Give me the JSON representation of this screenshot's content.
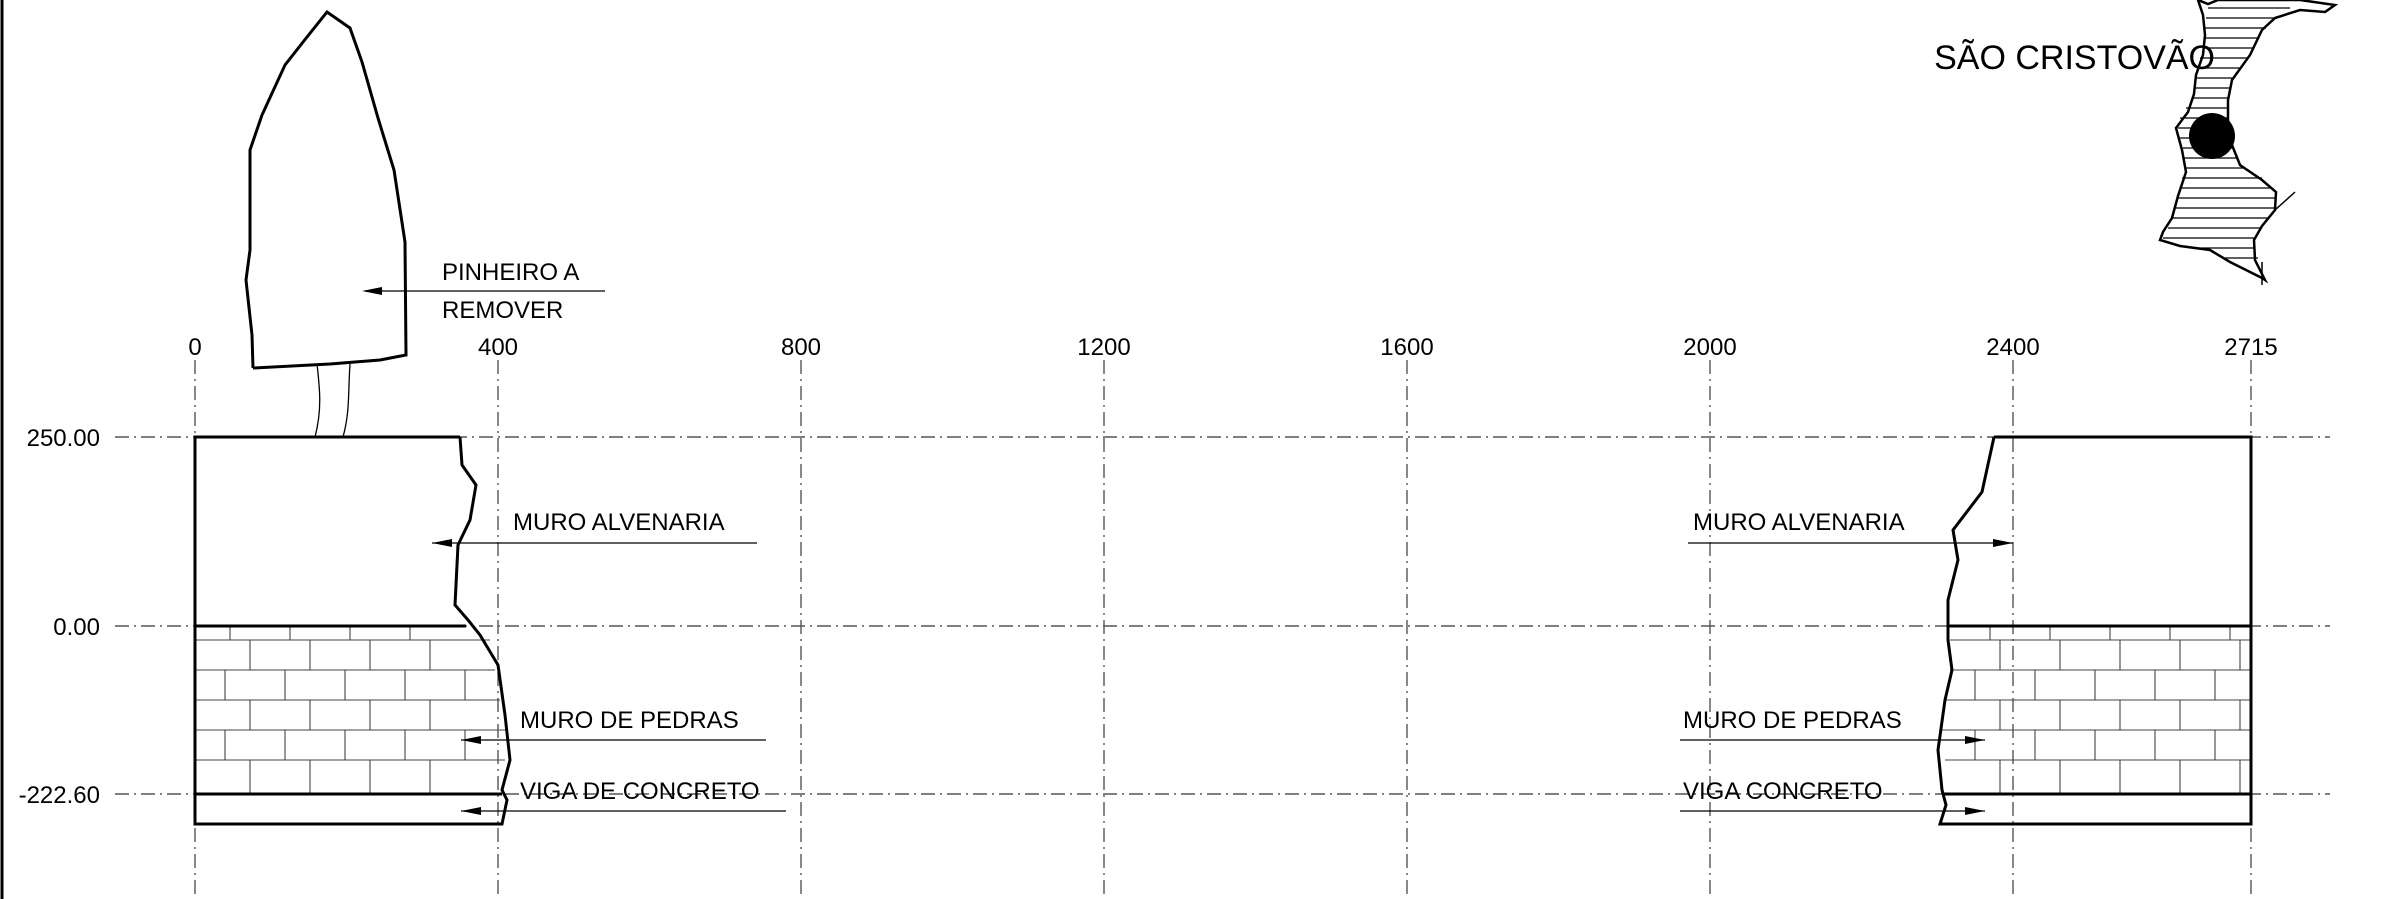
{
  "x_ticks": [
    "0",
    "400",
    "800",
    "1200",
    "1600",
    "2000",
    "2400",
    "2715"
  ],
  "levels": [
    "250.00",
    "0.00",
    "-222.60"
  ],
  "labels": {
    "tree_line1": "PINHEIRO A",
    "tree_line2": "REMOVER",
    "masonry_left": "MURO ALVENARIA",
    "masonry_right": "MURO ALVENARIA",
    "stone_left": "MURO DE PEDRAS",
    "stone_right": "MURO DE PEDRAS",
    "beam_left": "VIGA DE CONCRETO",
    "beam_right": "VIGA CONCRETO"
  },
  "location": {
    "name": "SÃO CRISTOVÃO",
    "marker_icon": "location-dot-icon"
  }
}
